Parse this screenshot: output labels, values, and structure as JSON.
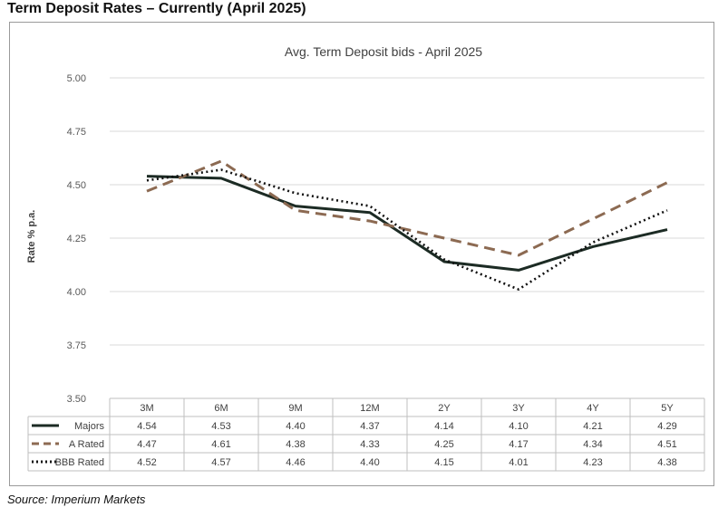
{
  "page": {
    "title": "Term Deposit Rates – Currently (April 2025)",
    "source": "Source: Imperium Markets"
  },
  "chart_data": {
    "type": "line",
    "title": "Avg. Term Deposit bids - April 2025",
    "ylabel": "Rate % p.a.",
    "xlabel": "",
    "ylim": [
      3.5,
      5.0
    ],
    "ytick_labels": [
      "5.00",
      "4.75",
      "4.50",
      "4.25",
      "4.00",
      "3.75",
      "3.50"
    ],
    "yticks": [
      5.0,
      4.75,
      4.5,
      4.25,
      4.0,
      3.75,
      3.5
    ],
    "grid": true,
    "categories": [
      "3M",
      "6M",
      "9M",
      "12M",
      "2Y",
      "3Y",
      "4Y",
      "5Y"
    ],
    "series": [
      {
        "name": "Majors",
        "values": [
          4.54,
          4.53,
          4.4,
          4.37,
          4.14,
          4.1,
          4.21,
          4.29
        ],
        "value_labels": [
          "4.54",
          "4.53",
          "4.40",
          "4.37",
          "4.14",
          "4.10",
          "4.21",
          "4.29"
        ],
        "color": "#1c2b24",
        "style": "solid"
      },
      {
        "name": "A Rated",
        "values": [
          4.47,
          4.61,
          4.38,
          4.33,
          4.25,
          4.17,
          4.34,
          4.51
        ],
        "value_labels": [
          "4.47",
          "4.61",
          "4.38",
          "4.33",
          "4.25",
          "4.17",
          "4.34",
          "4.51"
        ],
        "color": "#8c6a52",
        "style": "dashed"
      },
      {
        "name": "BBB Rated",
        "values": [
          4.52,
          4.57,
          4.46,
          4.4,
          4.15,
          4.01,
          4.23,
          4.38
        ],
        "value_labels": [
          "4.52",
          "4.57",
          "4.46",
          "4.40",
          "4.15",
          "4.01",
          "4.23",
          "4.38"
        ],
        "color": "#111111",
        "style": "dotted"
      }
    ],
    "legend": "data-table below chart"
  }
}
